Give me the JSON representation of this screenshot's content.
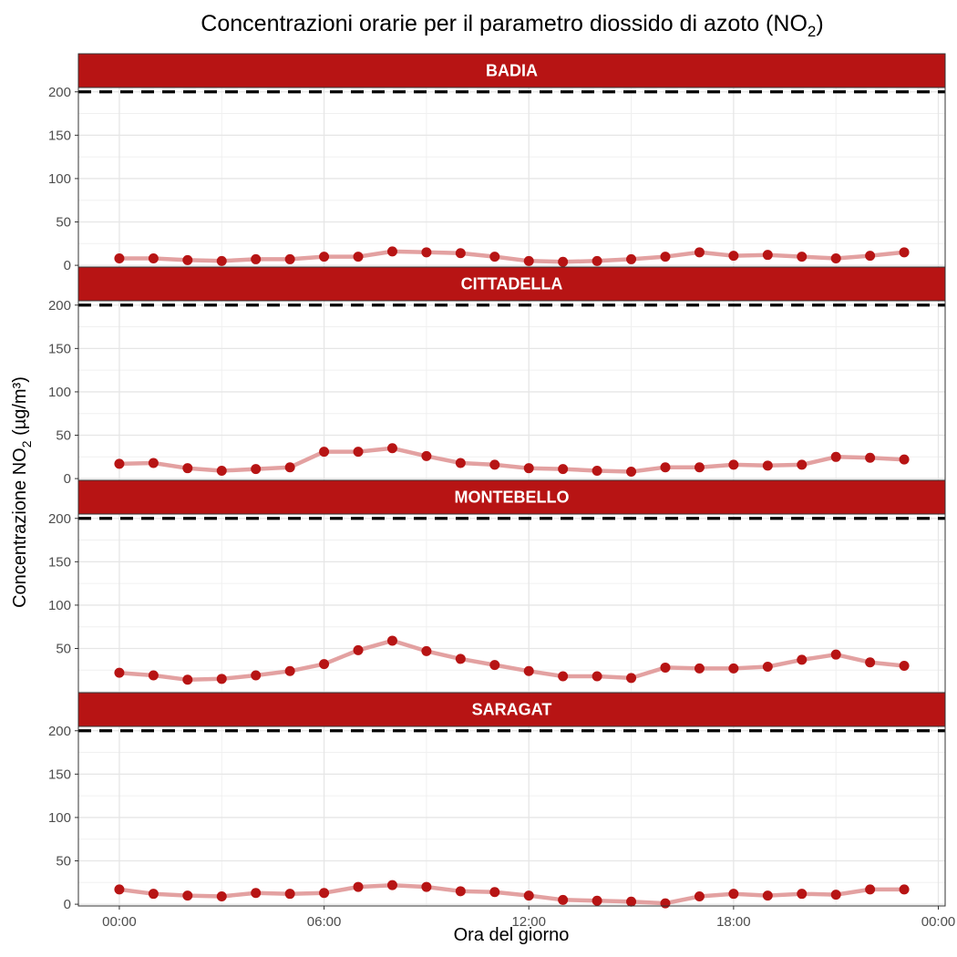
{
  "chart_data": {
    "type": "line",
    "title": "Concentrazioni orarie per il parametro diossido di azoto (NO",
    "title_sub": "2",
    "title_end": ")",
    "xlabel": "Ora del giorno",
    "ylabel": "Concentrazione NO",
    "ylabel_sub": "2",
    "ylabel_end": " (µg/m³)",
    "x_ticks": [
      {
        "hour": 0,
        "label": "00:00"
      },
      {
        "hour": 6,
        "label": "06:00"
      },
      {
        "hour": 12,
        "label": "12:00"
      },
      {
        "hour": 18,
        "label": "18:00"
      },
      {
        "hour": 24,
        "label": "00:00"
      }
    ],
    "xlim": [
      -1.2,
      24.2
    ],
    "ylim": [
      -2,
      205
    ],
    "y_ticks": [
      0,
      50,
      100,
      150,
      200
    ],
    "threshold": 200,
    "hours": [
      0,
      1,
      2,
      3,
      4,
      5,
      6,
      7,
      8,
      9,
      10,
      11,
      12,
      13,
      14,
      15,
      16,
      17,
      18,
      19,
      20,
      21,
      22,
      23
    ],
    "colors": {
      "strip": "#b71414",
      "point": "#b71414",
      "line": "#e3a1a1",
      "threshold": "#000000"
    },
    "grid": true,
    "panels": [
      {
        "name": "BADIA",
        "values": [
          8,
          8,
          6,
          5,
          7,
          7,
          10,
          10,
          16,
          15,
          14,
          10,
          5,
          4,
          5,
          7,
          10,
          15,
          11,
          12,
          10,
          8,
          11,
          15
        ]
      },
      {
        "name": "CITTADELLA",
        "values": [
          17,
          18,
          12,
          9,
          11,
          13,
          31,
          31,
          35,
          26,
          18,
          16,
          12,
          11,
          9,
          8,
          13,
          13,
          16,
          15,
          16,
          25,
          24,
          22
        ]
      },
      {
        "name": "MONTEBELLO",
        "values": [
          22,
          19,
          14,
          15,
          19,
          24,
          32,
          48,
          59,
          47,
          38,
          31,
          24,
          18,
          18,
          16,
          28,
          27,
          27,
          29,
          37,
          43,
          34,
          30
        ],
        "hide_zero_tick": true
      },
      {
        "name": "SARAGAT",
        "values": [
          17,
          12,
          10,
          9,
          13,
          12,
          13,
          20,
          22,
          20,
          15,
          14,
          10,
          5,
          4,
          3,
          1,
          9,
          12,
          10,
          12,
          11,
          17,
          17
        ]
      }
    ]
  }
}
